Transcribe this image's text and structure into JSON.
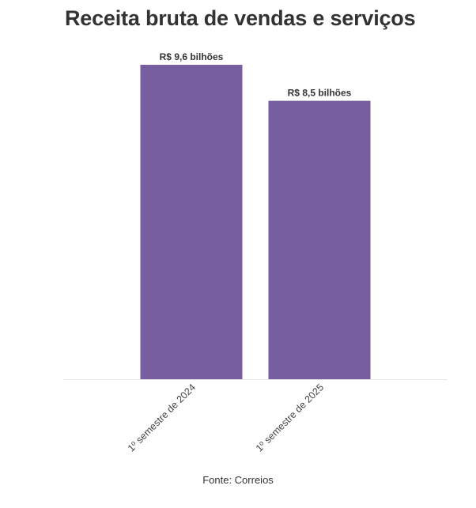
{
  "chart_data": {
    "type": "bar",
    "title": "Receita bruta de vendas e serviços",
    "categories": [
      "1º semestre de 2024",
      "1º semestre de 2025"
    ],
    "values": [
      9.6,
      8.5
    ],
    "data_labels": [
      "R$ 9,6 bilhões",
      "R$ 8,5 bilhões"
    ],
    "unit": "R$ bilhões",
    "ylim": [
      0,
      9.6
    ],
    "grid": false,
    "bar_color": "#775ea1"
  },
  "source": "Fonte: Correios"
}
